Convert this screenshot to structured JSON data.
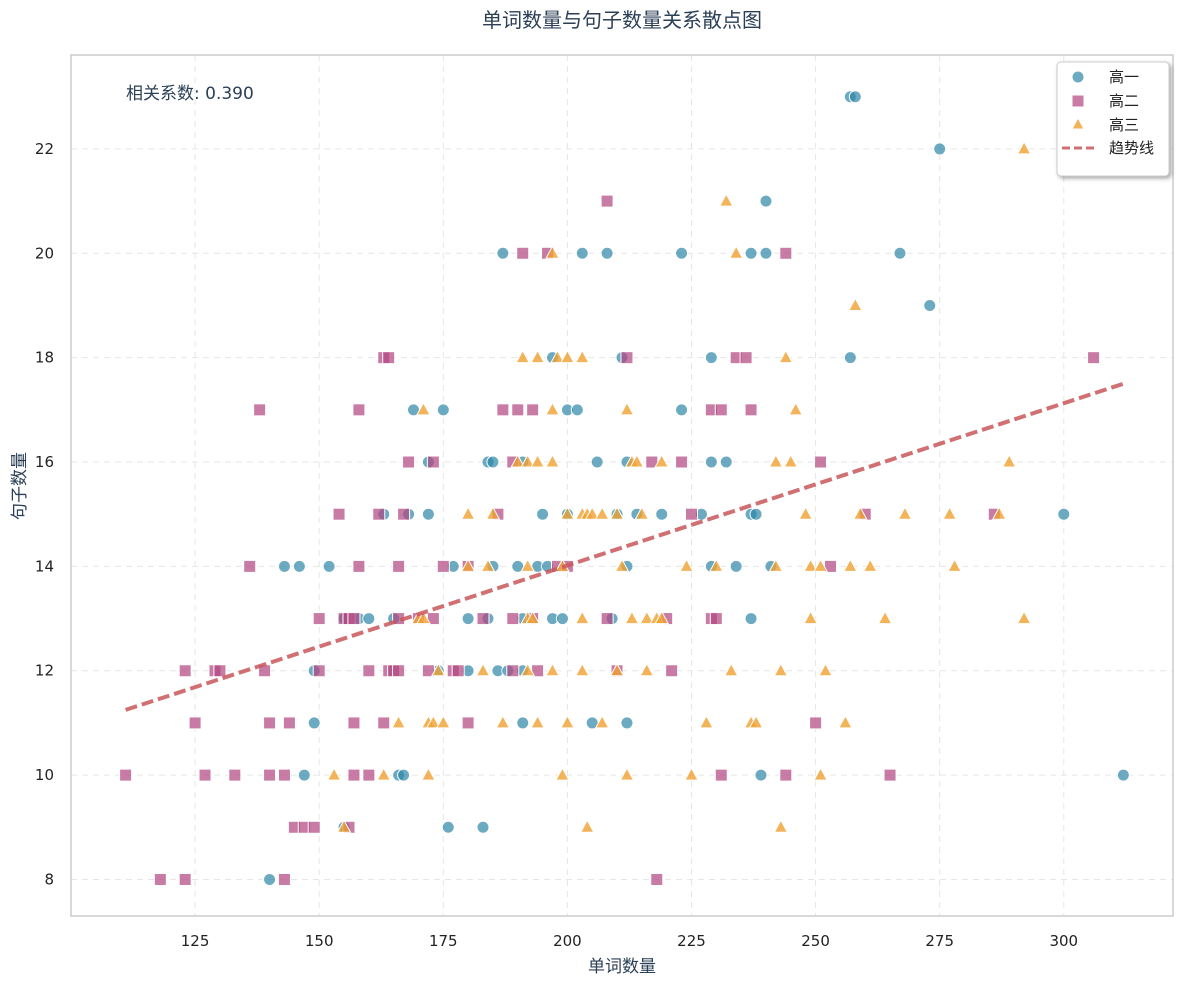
{
  "chart_data": {
    "type": "scatter",
    "title": "单词数量与句子数量关系散点图",
    "xlabel": "单词数量",
    "ylabel": "句子数量",
    "xlim": [
      100,
      322
    ],
    "ylim": [
      7.3,
      23.8
    ],
    "xticks": [
      125,
      150,
      175,
      200,
      225,
      250,
      275,
      300
    ],
    "yticks": [
      8,
      10,
      12,
      14,
      16,
      18,
      20,
      22
    ],
    "grid": true,
    "legend_position": "top-right",
    "annotation": "相关系数: 0.390",
    "trendline": {
      "name": "趋势线",
      "x": [
        111,
        312
      ],
      "y": [
        11.25,
        17.5
      ],
      "color": "#c9575a"
    },
    "series": [
      {
        "name": "高一",
        "marker": "circle",
        "color": "#2e86a8",
        "points": [
          [
            257,
            23
          ],
          [
            258,
            23
          ],
          [
            275,
            22
          ],
          [
            240,
            21
          ],
          [
            187,
            20
          ],
          [
            203,
            20
          ],
          [
            208,
            20
          ],
          [
            223,
            20
          ],
          [
            237,
            20
          ],
          [
            240,
            20
          ],
          [
            267,
            20
          ],
          [
            273,
            19
          ],
          [
            197,
            18
          ],
          [
            211,
            18
          ],
          [
            229,
            18
          ],
          [
            257,
            18
          ],
          [
            169,
            17
          ],
          [
            175,
            17
          ],
          [
            200,
            17
          ],
          [
            202,
            17
          ],
          [
            223,
            17
          ],
          [
            172,
            16
          ],
          [
            184,
            16
          ],
          [
            185,
            16
          ],
          [
            191,
            16
          ],
          [
            206,
            16
          ],
          [
            212,
            16
          ],
          [
            229,
            16
          ],
          [
            232,
            16
          ],
          [
            163,
            15
          ],
          [
            168,
            15
          ],
          [
            172,
            15
          ],
          [
            195,
            15
          ],
          [
            200,
            15
          ],
          [
            210,
            15
          ],
          [
            214,
            15
          ],
          [
            219,
            15
          ],
          [
            227,
            15
          ],
          [
            237,
            15
          ],
          [
            238,
            15
          ],
          [
            300,
            15
          ],
          [
            143,
            14
          ],
          [
            146,
            14
          ],
          [
            152,
            14
          ],
          [
            177,
            14
          ],
          [
            185,
            14
          ],
          [
            190,
            14
          ],
          [
            194,
            14
          ],
          [
            196,
            14
          ],
          [
            212,
            14
          ],
          [
            229,
            14
          ],
          [
            234,
            14
          ],
          [
            241,
            14
          ],
          [
            155,
            13
          ],
          [
            158,
            13
          ],
          [
            160,
            13
          ],
          [
            165,
            13
          ],
          [
            180,
            13
          ],
          [
            184,
            13
          ],
          [
            191,
            13
          ],
          [
            197,
            13
          ],
          [
            199,
            13
          ],
          [
            209,
            13
          ],
          [
            237,
            13
          ],
          [
            149,
            12
          ],
          [
            174,
            12
          ],
          [
            180,
            12
          ],
          [
            186,
            12
          ],
          [
            188,
            12
          ],
          [
            191,
            12
          ],
          [
            149,
            11
          ],
          [
            191,
            11
          ],
          [
            205,
            11
          ],
          [
            212,
            11
          ],
          [
            147,
            10
          ],
          [
            166,
            10
          ],
          [
            167,
            10
          ],
          [
            239,
            10
          ],
          [
            312,
            10
          ],
          [
            155,
            9
          ],
          [
            176,
            9
          ],
          [
            183,
            9
          ],
          [
            140,
            8
          ]
        ]
      },
      {
        "name": "高二",
        "marker": "square",
        "color": "#b0457f",
        "points": [
          [
            208,
            21
          ],
          [
            191,
            20
          ],
          [
            196,
            20
          ],
          [
            244,
            20
          ],
          [
            163,
            18
          ],
          [
            164,
            18
          ],
          [
            212,
            18
          ],
          [
            234,
            18
          ],
          [
            236,
            18
          ],
          [
            306,
            18
          ],
          [
            138,
            17
          ],
          [
            158,
            17
          ],
          [
            187,
            17
          ],
          [
            190,
            17
          ],
          [
            193,
            17
          ],
          [
            229,
            17
          ],
          [
            231,
            17
          ],
          [
            237,
            17
          ],
          [
            168,
            16
          ],
          [
            173,
            16
          ],
          [
            189,
            16
          ],
          [
            217,
            16
          ],
          [
            223,
            16
          ],
          [
            251,
            16
          ],
          [
            154,
            15
          ],
          [
            162,
            15
          ],
          [
            167,
            15
          ],
          [
            186,
            15
          ],
          [
            225,
            15
          ],
          [
            260,
            15
          ],
          [
            286,
            15
          ],
          [
            136,
            14
          ],
          [
            158,
            14
          ],
          [
            166,
            14
          ],
          [
            175,
            14
          ],
          [
            180,
            14
          ],
          [
            198,
            14
          ],
          [
            200,
            14
          ],
          [
            253,
            14
          ],
          [
            150,
            13
          ],
          [
            155,
            13
          ],
          [
            156,
            13
          ],
          [
            157,
            13
          ],
          [
            166,
            13
          ],
          [
            170,
            13
          ],
          [
            173,
            13
          ],
          [
            183,
            13
          ],
          [
            189,
            13
          ],
          [
            193,
            13
          ],
          [
            208,
            13
          ],
          [
            220,
            13
          ],
          [
            229,
            13
          ],
          [
            230,
            13
          ],
          [
            123,
            12
          ],
          [
            129,
            12
          ],
          [
            130,
            12
          ],
          [
            139,
            12
          ],
          [
            150,
            12
          ],
          [
            160,
            12
          ],
          [
            164,
            12
          ],
          [
            165,
            12
          ],
          [
            166,
            12
          ],
          [
            172,
            12
          ],
          [
            177,
            12
          ],
          [
            178,
            12
          ],
          [
            189,
            12
          ],
          [
            194,
            12
          ],
          [
            210,
            12
          ],
          [
            221,
            12
          ],
          [
            125,
            11
          ],
          [
            140,
            11
          ],
          [
            144,
            11
          ],
          [
            157,
            11
          ],
          [
            163,
            11
          ],
          [
            180,
            11
          ],
          [
            250,
            11
          ],
          [
            111,
            10
          ],
          [
            127,
            10
          ],
          [
            133,
            10
          ],
          [
            140,
            10
          ],
          [
            143,
            10
          ],
          [
            157,
            10
          ],
          [
            160,
            10
          ],
          [
            231,
            10
          ],
          [
            244,
            10
          ],
          [
            265,
            10
          ],
          [
            145,
            9
          ],
          [
            147,
            9
          ],
          [
            149,
            9
          ],
          [
            156,
            9
          ],
          [
            118,
            8
          ],
          [
            123,
            8
          ],
          [
            143,
            8
          ],
          [
            218,
            8
          ]
        ]
      },
      {
        "name": "高三",
        "marker": "triangle",
        "color": "#f0a030",
        "points": [
          [
            292,
            22
          ],
          [
            232,
            21
          ],
          [
            197,
            20
          ],
          [
            234,
            20
          ],
          [
            258,
            19
          ],
          [
            191,
            18
          ],
          [
            194,
            18
          ],
          [
            198,
            18
          ],
          [
            200,
            18
          ],
          [
            203,
            18
          ],
          [
            244,
            18
          ],
          [
            171,
            17
          ],
          [
            197,
            17
          ],
          [
            212,
            17
          ],
          [
            246,
            17
          ],
          [
            190,
            16
          ],
          [
            192,
            16
          ],
          [
            194,
            16
          ],
          [
            197,
            16
          ],
          [
            213,
            16
          ],
          [
            214,
            16
          ],
          [
            219,
            16
          ],
          [
            242,
            16
          ],
          [
            245,
            16
          ],
          [
            289,
            16
          ],
          [
            180,
            15
          ],
          [
            185,
            15
          ],
          [
            200,
            15
          ],
          [
            203,
            15
          ],
          [
            204,
            15
          ],
          [
            205,
            15
          ],
          [
            207,
            15
          ],
          [
            210,
            15
          ],
          [
            215,
            15
          ],
          [
            248,
            15
          ],
          [
            259,
            15
          ],
          [
            268,
            15
          ],
          [
            277,
            15
          ],
          [
            287,
            15
          ],
          [
            180,
            14
          ],
          [
            184,
            14
          ],
          [
            192,
            14
          ],
          [
            199,
            14
          ],
          [
            211,
            14
          ],
          [
            224,
            14
          ],
          [
            230,
            14
          ],
          [
            242,
            14
          ],
          [
            249,
            14
          ],
          [
            251,
            14
          ],
          [
            257,
            14
          ],
          [
            261,
            14
          ],
          [
            278,
            14
          ],
          [
            170,
            13
          ],
          [
            171,
            13
          ],
          [
            192,
            13
          ],
          [
            193,
            13
          ],
          [
            203,
            13
          ],
          [
            213,
            13
          ],
          [
            216,
            13
          ],
          [
            218,
            13
          ],
          [
            219,
            13
          ],
          [
            249,
            13
          ],
          [
            264,
            13
          ],
          [
            292,
            13
          ],
          [
            174,
            12
          ],
          [
            183,
            12
          ],
          [
            192,
            12
          ],
          [
            197,
            12
          ],
          [
            203,
            12
          ],
          [
            210,
            12
          ],
          [
            216,
            12
          ],
          [
            233,
            12
          ],
          [
            243,
            12
          ],
          [
            252,
            12
          ],
          [
            166,
            11
          ],
          [
            172,
            11
          ],
          [
            173,
            11
          ],
          [
            175,
            11
          ],
          [
            187,
            11
          ],
          [
            194,
            11
          ],
          [
            200,
            11
          ],
          [
            207,
            11
          ],
          [
            228,
            11
          ],
          [
            237,
            11
          ],
          [
            238,
            11
          ],
          [
            256,
            11
          ],
          [
            153,
            10
          ],
          [
            163,
            10
          ],
          [
            172,
            10
          ],
          [
            199,
            10
          ],
          [
            212,
            10
          ],
          [
            225,
            10
          ],
          [
            251,
            10
          ],
          [
            155,
            9
          ],
          [
            204,
            9
          ],
          [
            243,
            9
          ]
        ]
      }
    ]
  }
}
